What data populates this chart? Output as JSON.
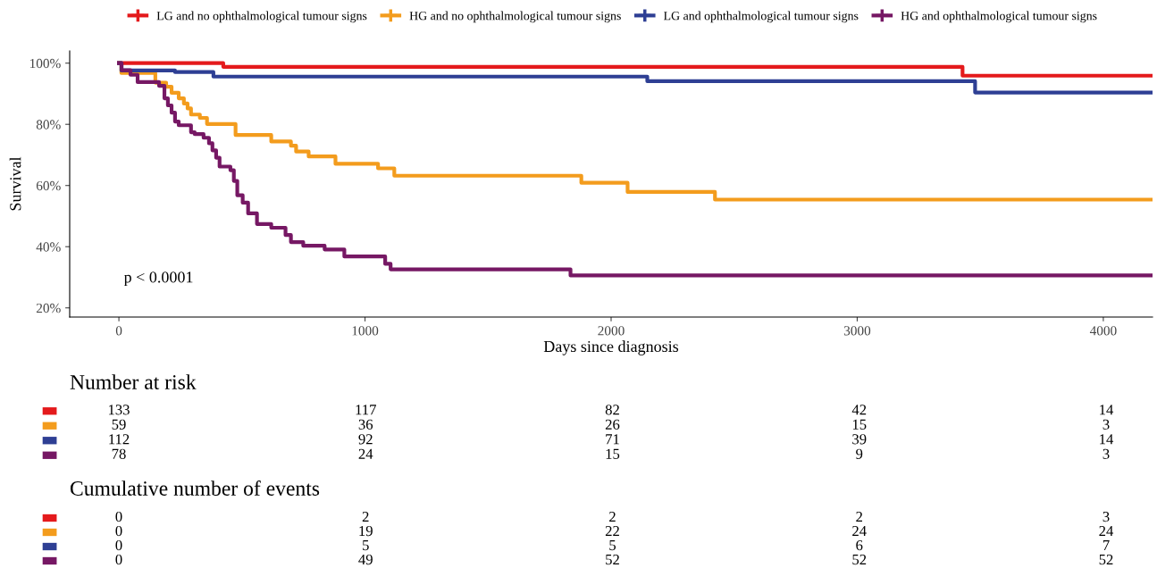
{
  "chart_data": [
    {
      "type": "step",
      "xlabel": "Days since diagnosis",
      "ylabel": "Survival",
      "legend": "top",
      "grid": false,
      "xlim": [
        -200,
        4200
      ],
      "ylim": [
        17,
        104
      ],
      "xticks": [
        0,
        1000,
        2000,
        3000,
        4000
      ],
      "yticks": [
        {
          "value": 20,
          "label": "20%"
        },
        {
          "value": 40,
          "label": "40%"
        },
        {
          "value": 60,
          "label": "60%"
        },
        {
          "value": 80,
          "label": "80%"
        },
        {
          "value": 100,
          "label": "100%"
        }
      ],
      "annotations": [
        "p < 0.0001"
      ],
      "series": [
        {
          "name": "LG and no ophthalmological tumour signs",
          "color": "#e41a1c",
          "x": [
            0,
            424,
            3428,
            4200
          ],
          "values": [
            100,
            98.8,
            95.9,
            95.9
          ]
        },
        {
          "name": "HG and no ophthalmological tumour signs",
          "color": "#f39c1d",
          "x": [
            0,
            10,
            148,
            192,
            214,
            243,
            264,
            279,
            293,
            329,
            358,
            474,
            619,
            699,
            720,
            771,
            880,
            1053,
            1119,
            1879,
            2067,
            2422,
            4200
          ],
          "values": [
            100,
            96.8,
            93.6,
            92.3,
            90.3,
            88.5,
            86.8,
            85.2,
            83.2,
            82.1,
            80.1,
            76.5,
            74.4,
            73,
            71.1,
            69.5,
            67.1,
            65.6,
            63.2,
            60.9,
            57.9,
            55.4,
            55.4
          ]
        },
        {
          "name": "LG and ophthalmological tumour signs",
          "color": "#2e3f94",
          "x": [
            0,
            10,
            228,
            384,
            2147,
            3479,
            4200
          ],
          "values": [
            100,
            97.6,
            97.1,
            95.6,
            94.1,
            90.4,
            90.4
          ]
        },
        {
          "name": "HG and ophthalmological tumour signs",
          "color": "#761864",
          "x": [
            0,
            11,
            47,
            76,
            163,
            185,
            199,
            214,
            228,
            243,
            293,
            308,
            344,
            366,
            380,
            395,
            409,
            453,
            467,
            481,
            503,
            525,
            561,
            619,
            677,
            699,
            749,
            836,
            916,
            1082,
            1104,
            1835,
            4200
          ],
          "values": [
            100,
            97.7,
            96.2,
            93.8,
            92.6,
            88.5,
            86.2,
            83.8,
            80.9,
            79.7,
            77.4,
            76.8,
            75.6,
            73.8,
            71.5,
            69.1,
            66.2,
            65,
            61.5,
            56.8,
            54.4,
            50.9,
            47.4,
            46.2,
            43.8,
            41.5,
            40.3,
            39.1,
            36.8,
            34.4,
            32.6,
            30.6,
            30.6
          ]
        }
      ]
    },
    {
      "type": "other",
      "title": "Number at risk",
      "colors": [
        "#e41a1c",
        "#f39c1d",
        "#2e3f94",
        "#761864"
      ],
      "annotations": [
        "133",
        "117",
        "82",
        "42",
        "14",
        "59",
        "36",
        "26",
        "15",
        "3",
        "112",
        "92",
        "71",
        "39",
        "14",
        "78",
        "24",
        "15",
        "9",
        "3"
      ]
    },
    {
      "type": "other",
      "title": "Cumulative number of events",
      "colors": [
        "#e41a1c",
        "#f39c1d",
        "#2e3f94",
        "#761864"
      ],
      "annotations": [
        "0",
        "2",
        "2",
        "2",
        "3",
        "0",
        "19",
        "22",
        "24",
        "24",
        "0",
        "5",
        "5",
        "6",
        "7",
        "0",
        "49",
        "52",
        "52",
        "52"
      ]
    }
  ]
}
